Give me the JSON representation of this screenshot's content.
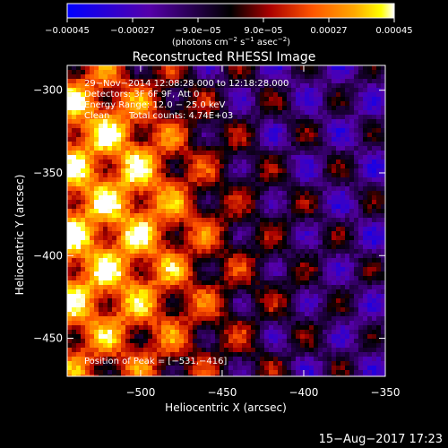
{
  "chart_data": {
    "type": "heatmap",
    "title": "Reconstructed RHESSI Image",
    "xlabel": "Heliocentric X (arcsec)",
    "ylabel": "Heliocentric Y (arcsec)",
    "xlim": [
      -545,
      -350
    ],
    "ylim": [
      -473,
      -285
    ],
    "x_ticks": [
      -500,
      -450,
      -400,
      -350
    ],
    "x_tick_labels": [
      "−500",
      "−450",
      "−400",
      "−350"
    ],
    "y_ticks": [
      -300,
      -350,
      -400,
      -450
    ],
    "y_tick_labels": [
      "−300",
      "−350",
      "−400",
      "−450"
    ],
    "colorbar": {
      "range": [
        -0.00045,
        0.00045
      ],
      "ticks": [
        -0.00045,
        -0.00027,
        -9e-05,
        9e-05,
        0.00027,
        0.00045
      ],
      "tick_labels": [
        "−0.00045",
        "−0.00027",
        "−9.0e−05",
        "9.0e−05",
        "0.00027",
        "0.00045"
      ],
      "units_main": "(photons cm",
      "units_sup1": "−2",
      "units_mid": " s",
      "units_sup2": "−1",
      "units_asec": " asec",
      "units_sup3": "−2",
      "units_close": ")",
      "colors": [
        "#0000ff",
        "#5500aa",
        "#000000",
        "#aa0000",
        "#ff5500",
        "#ffaa00",
        "#ffff00",
        "#ffffff"
      ]
    },
    "annotations": {
      "line1": "29−Nov−2014 12:08:28.000 to 12:18:28.000",
      "line2": "Detectors: 3F 6F 9F, Att 0",
      "line3": "Energy Range: 12.0 − 25.0 keV",
      "line4_a": "Clean",
      "line4_b": "Total counts: 4.74E+03",
      "peak": "Position of Peak = [−531,−416]"
    },
    "peak_position": [
      -531,
      -416
    ],
    "grid": false
  },
  "footer": {
    "timestamp": "15−Aug−2017 17:23"
  }
}
